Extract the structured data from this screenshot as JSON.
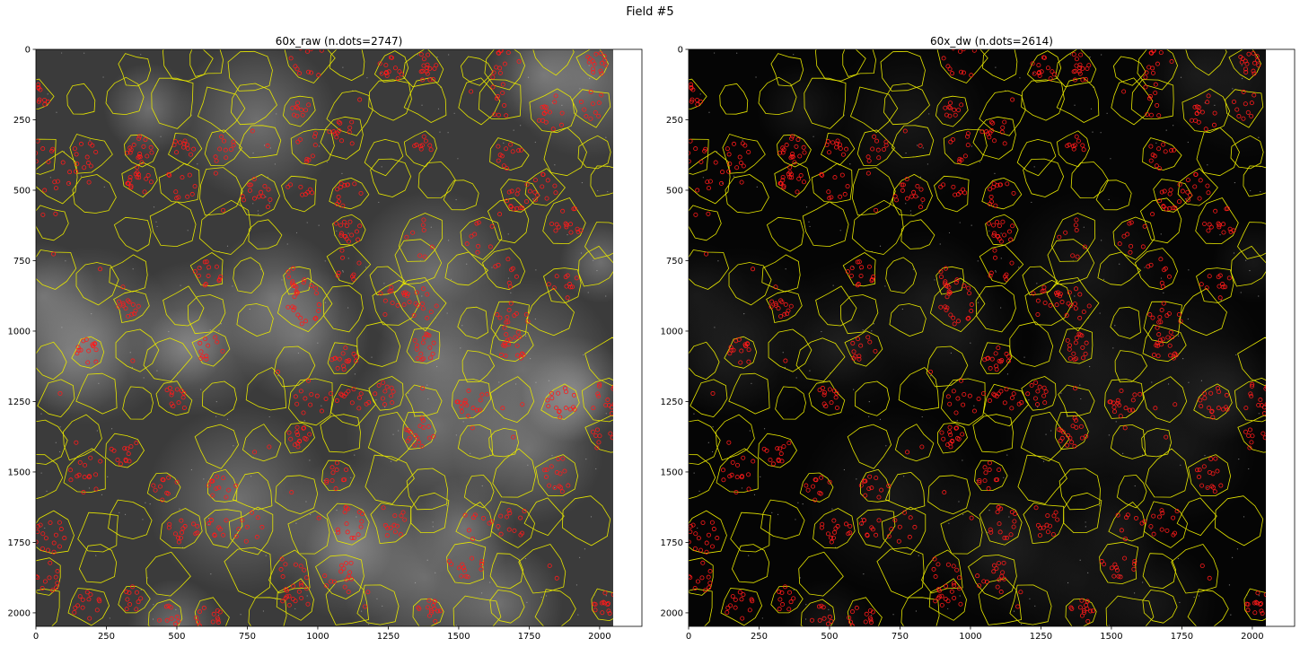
{
  "figure": {
    "suptitle": "Field #5"
  },
  "panels": [
    {
      "id": "raw",
      "title": "60x_raw (n.dots=2747)",
      "background": "#3b3b3b",
      "glow": "#8a8a8a",
      "speckle": "#cfcfcf"
    },
    {
      "id": "dw",
      "title": "60x_dw (n.dots=2614)",
      "background": "#050505",
      "glow": "#1a1a1a",
      "speckle": "#e8e8e8"
    }
  ],
  "axes": {
    "xlim": [
      0,
      2150
    ],
    "ylim": [
      2048,
      0
    ],
    "image_extent": 2048,
    "x_ticks": [
      "0",
      "250",
      "500",
      "750",
      "1000",
      "1250",
      "1500",
      "1750",
      "2000"
    ],
    "y_ticks": [
      "0",
      "250",
      "500",
      "750",
      "1000",
      "1250",
      "1500",
      "1750",
      "2000"
    ]
  },
  "colors": {
    "outline": "#e6e600",
    "dots": "#ff1a1a",
    "frame": "#000000"
  }
}
